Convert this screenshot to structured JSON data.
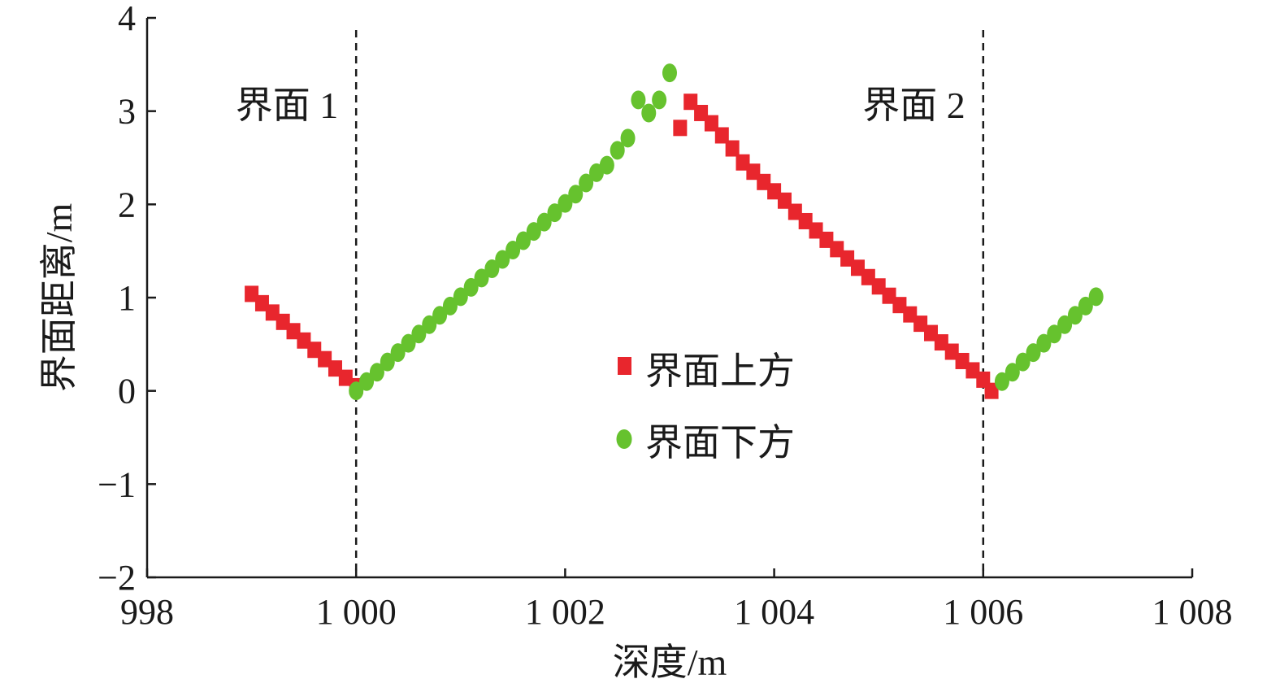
{
  "chart_data": {
    "type": "scatter",
    "xlabel": "深度/m",
    "ylabel": "界面距离/m",
    "xlim": [
      998,
      1008
    ],
    "ylim": [
      -2,
      4
    ],
    "x_ticks": [
      998,
      1000,
      1002,
      1004,
      1006,
      1008
    ],
    "x_tick_labels": [
      "998",
      "1 000",
      "1 002",
      "1 004",
      "1 006",
      "1 008"
    ],
    "y_ticks": [
      -2,
      -1,
      0,
      1,
      2,
      3,
      4
    ],
    "y_tick_labels": [
      "−2",
      "−1",
      "0",
      "1",
      "2",
      "3",
      "4"
    ],
    "grid": false,
    "legend_position": "center",
    "reference_lines": [
      {
        "x": 1000.0,
        "label": "界面 1",
        "style": "dashed"
      },
      {
        "x": 1006.0,
        "label": "界面 2",
        "style": "dashed"
      }
    ],
    "series": [
      {
        "name": "界面上方",
        "marker": "square",
        "color": "#e8262d",
        "points": [
          [
            999.0,
            1.04
          ],
          [
            999.1,
            0.94
          ],
          [
            999.2,
            0.84
          ],
          [
            999.3,
            0.74
          ],
          [
            999.4,
            0.64
          ],
          [
            999.5,
            0.54
          ],
          [
            999.6,
            0.44
          ],
          [
            999.7,
            0.34
          ],
          [
            999.8,
            0.24
          ],
          [
            999.9,
            0.14
          ],
          [
            1000.0,
            0.05
          ],
          [
            1003.1,
            2.82
          ],
          [
            1003.2,
            3.1
          ],
          [
            1003.3,
            2.98
          ],
          [
            1003.4,
            2.87
          ],
          [
            1003.5,
            2.74
          ],
          [
            1003.6,
            2.6
          ],
          [
            1003.7,
            2.45
          ],
          [
            1003.8,
            2.35
          ],
          [
            1003.9,
            2.24
          ],
          [
            1004.0,
            2.14
          ],
          [
            1004.1,
            2.04
          ],
          [
            1004.2,
            1.92
          ],
          [
            1004.3,
            1.82
          ],
          [
            1004.4,
            1.72
          ],
          [
            1004.5,
            1.62
          ],
          [
            1004.6,
            1.52
          ],
          [
            1004.7,
            1.42
          ],
          [
            1004.8,
            1.32
          ],
          [
            1004.9,
            1.22
          ],
          [
            1005.0,
            1.12
          ],
          [
            1005.1,
            1.02
          ],
          [
            1005.2,
            0.92
          ],
          [
            1005.3,
            0.82
          ],
          [
            1005.4,
            0.72
          ],
          [
            1005.5,
            0.62
          ],
          [
            1005.6,
            0.52
          ],
          [
            1005.7,
            0.42
          ],
          [
            1005.8,
            0.32
          ],
          [
            1005.9,
            0.22
          ],
          [
            1006.0,
            0.12
          ],
          [
            1006.08,
            0.0
          ]
        ]
      },
      {
        "name": "界面下方",
        "marker": "circle",
        "color": "#66c22e",
        "points": [
          [
            1000.0,
            0.0
          ],
          [
            1000.1,
            0.1
          ],
          [
            1000.2,
            0.2
          ],
          [
            1000.3,
            0.31
          ],
          [
            1000.4,
            0.41
          ],
          [
            1000.5,
            0.51
          ],
          [
            1000.6,
            0.61
          ],
          [
            1000.7,
            0.71
          ],
          [
            1000.8,
            0.81
          ],
          [
            1000.9,
            0.91
          ],
          [
            1001.0,
            1.01
          ],
          [
            1001.1,
            1.11
          ],
          [
            1001.2,
            1.21
          ],
          [
            1001.3,
            1.31
          ],
          [
            1001.4,
            1.41
          ],
          [
            1001.5,
            1.51
          ],
          [
            1001.6,
            1.61
          ],
          [
            1001.7,
            1.71
          ],
          [
            1001.8,
            1.81
          ],
          [
            1001.9,
            1.91
          ],
          [
            1002.0,
            2.01
          ],
          [
            1002.1,
            2.11
          ],
          [
            1002.2,
            2.23
          ],
          [
            1002.3,
            2.34
          ],
          [
            1002.4,
            2.42
          ],
          [
            1002.5,
            2.58
          ],
          [
            1002.6,
            2.71
          ],
          [
            1002.7,
            3.12
          ],
          [
            1002.8,
            2.98
          ],
          [
            1002.9,
            3.12
          ],
          [
            1003.0,
            3.41
          ],
          [
            1006.18,
            0.1
          ],
          [
            1006.28,
            0.2
          ],
          [
            1006.38,
            0.31
          ],
          [
            1006.48,
            0.41
          ],
          [
            1006.58,
            0.51
          ],
          [
            1006.68,
            0.61
          ],
          [
            1006.78,
            0.71
          ],
          [
            1006.88,
            0.81
          ],
          [
            1006.98,
            0.91
          ],
          [
            1007.08,
            1.01
          ]
        ]
      }
    ]
  }
}
